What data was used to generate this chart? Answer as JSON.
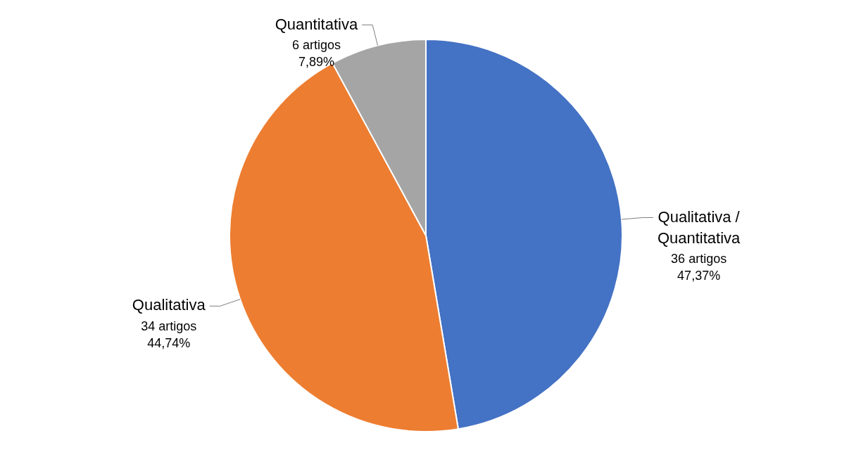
{
  "chart_data": {
    "type": "pie",
    "categories": [
      "Qualitativa / Quantitativa",
      "Qualitativa",
      "Quantitativa"
    ],
    "values": [
      36,
      34,
      6
    ],
    "colors": [
      "#4472c4",
      "#ed7d31",
      "#a5a5a5"
    ],
    "value_labels": [
      "36 artigos\n47,37%",
      "34 artigos\n44,74%",
      "6 artigos\n7,89%"
    ],
    "legend": false
  }
}
